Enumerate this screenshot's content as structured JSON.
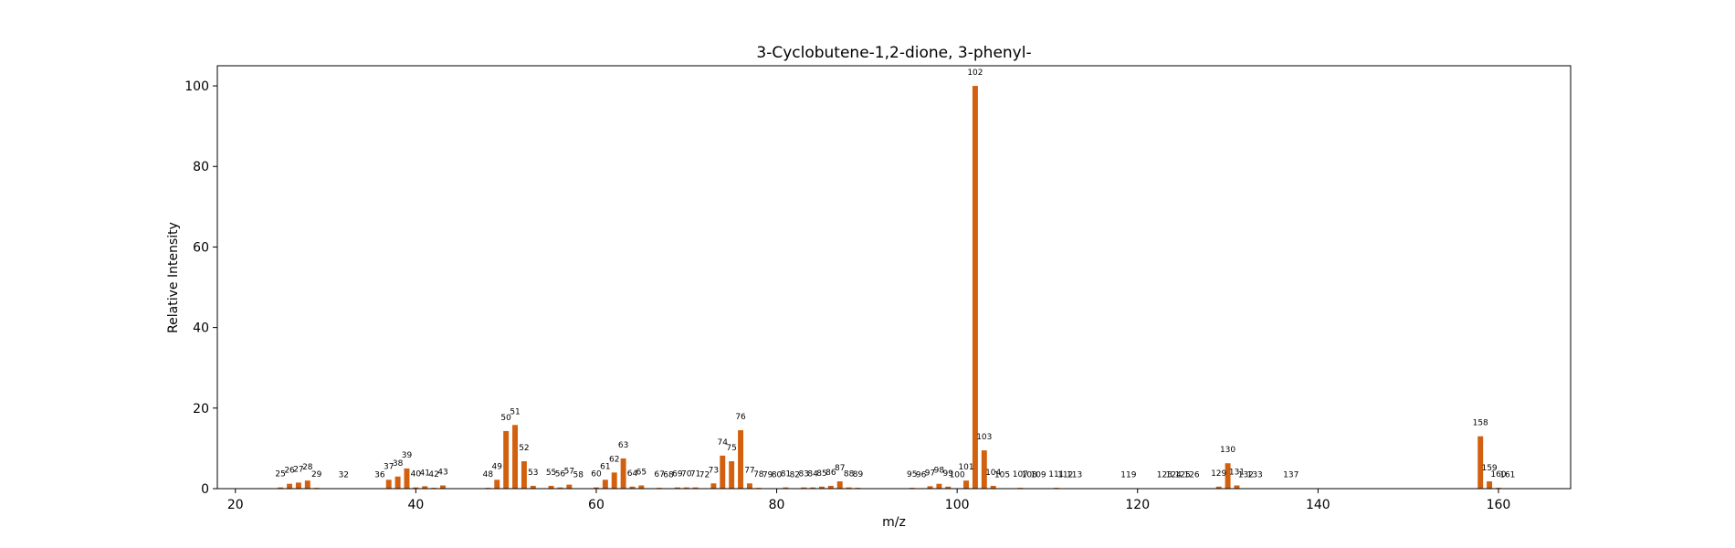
{
  "chart_data": {
    "type": "bar",
    "title": "3-Cyclobutene-1,2-dione, 3-phenyl-",
    "xlabel": "m/z",
    "ylabel": "Relative Intensity",
    "xlim": [
      18,
      168
    ],
    "ylim": [
      0,
      105
    ],
    "xticks": [
      20,
      40,
      60,
      80,
      100,
      120,
      140,
      160
    ],
    "yticks": [
      0,
      20,
      40,
      60,
      80,
      100
    ],
    "grid": false,
    "bar_color": "#d2600e",
    "x": [
      25,
      26,
      27,
      28,
      29,
      32,
      36,
      37,
      38,
      39,
      40,
      41,
      42,
      43,
      48,
      49,
      50,
      51,
      52,
      53,
      55,
      56,
      57,
      58,
      60,
      61,
      62,
      63,
      64,
      65,
      67,
      68,
      69,
      70,
      71,
      72,
      73,
      74,
      75,
      76,
      77,
      78,
      79,
      80,
      81,
      82,
      83,
      84,
      85,
      86,
      87,
      88,
      89,
      95,
      96,
      97,
      98,
      99,
      100,
      101,
      102,
      103,
      104,
      105,
      107,
      108,
      109,
      111,
      112,
      113,
      119,
      123,
      124,
      125,
      126,
      129,
      130,
      131,
      132,
      133,
      137,
      158,
      159,
      160,
      161
    ],
    "values": [
      0.3,
      1.2,
      1.5,
      2.0,
      0.2,
      0.1,
      0.1,
      2.2,
      3.0,
      5.0,
      0.3,
      0.6,
      0.2,
      0.8,
      0.2,
      2.2,
      14.3,
      15.8,
      6.8,
      0.7,
      0.7,
      0.3,
      1.0,
      0.1,
      0.3,
      2.2,
      4.0,
      7.5,
      0.5,
      0.8,
      0.2,
      0.1,
      0.3,
      0.3,
      0.3,
      0.1,
      1.3,
      8.2,
      6.8,
      14.5,
      1.3,
      0.2,
      0.1,
      0.1,
      0.3,
      0.1,
      0.3,
      0.3,
      0.5,
      0.7,
      1.8,
      0.3,
      0.2,
      0.2,
      0.1,
      0.6,
      1.2,
      0.5,
      0.1,
      2.0,
      100.0,
      9.5,
      0.7,
      0.1,
      0.2,
      0.1,
      0.1,
      0.2,
      0.1,
      0.1,
      0.1,
      0.1,
      0.1,
      0.1,
      0.1,
      0.5,
      6.3,
      0.8,
      0.1,
      0.1,
      0.1,
      13.0,
      1.8,
      0.2,
      0.1
    ],
    "labels": [
      "25",
      "26",
      "27",
      "28",
      "29",
      "32",
      "36",
      "37",
      "38",
      "39",
      "40",
      "41",
      "42",
      "43",
      "48",
      "49",
      "50",
      "51",
      "52",
      "53",
      "55",
      "56",
      "57",
      "58",
      "60",
      "61",
      "62",
      "63",
      "64",
      "65",
      "67",
      "68",
      "69",
      "70",
      "71",
      "72",
      "73",
      "74",
      "75",
      "76",
      "77",
      "78",
      "79",
      "80",
      "81",
      "82",
      "83",
      "84",
      "85",
      "86",
      "87",
      "88",
      "89",
      "95",
      "96",
      "97",
      "98",
      "99",
      "100",
      "101",
      "102",
      "103",
      "104",
      "105",
      "107",
      "108",
      "109",
      "111",
      "112",
      "113",
      "119",
      "123",
      "124",
      "125",
      "126",
      "129",
      "130",
      "131",
      "132",
      "133",
      "137",
      "158",
      "159",
      "160",
      "161"
    ]
  }
}
